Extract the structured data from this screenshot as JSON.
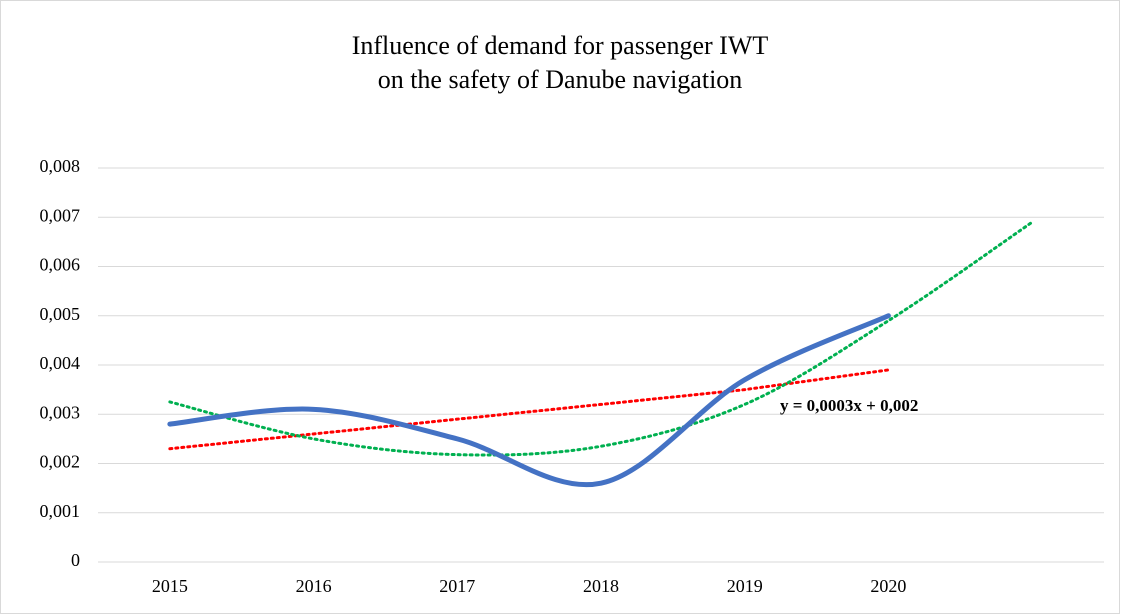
{
  "chart_data": {
    "type": "line",
    "title": [
      "Influence of demand for passenger IWT",
      "on the safety of Danube navigation"
    ],
    "categories": [
      "2015",
      "2016",
      "2017",
      "2018",
      "2019",
      "2020",
      null
    ],
    "series": [
      {
        "color": "#4472c4",
        "style": "solid",
        "smooth": true,
        "values": [
          0.0028,
          0.0031,
          0.0025,
          0.0016,
          0.0037,
          0.005,
          null
        ]
      },
      {
        "color": "#ff0000",
        "style": "dotted",
        "smooth": false,
        "values": [
          0.0023,
          0.0026,
          0.0029,
          0.0032,
          0.0035,
          0.0039,
          null
        ]
      },
      {
        "color": "#00b050",
        "style": "dotted",
        "smooth": true,
        "values": [
          0.00325,
          0.0025,
          0.00218,
          0.00235,
          0.0032,
          0.0049,
          0.0069
        ]
      }
    ],
    "annotation": "y = 0,0003x + 0,002",
    "ylim": [
      0,
      0.008
    ],
    "yticks": [
      0,
      {
        "value": 0.001,
        "label": "0,001"
      },
      {
        "value": 0.002,
        "label": "0,002"
      },
      {
        "value": 0.003,
        "label": "0,003"
      },
      {
        "value": 0.004,
        "label": "0,004"
      },
      {
        "value": 0.005,
        "label": "0,005"
      },
      {
        "value": 0.006,
        "label": "0,006"
      },
      {
        "value": 0.007,
        "label": "0,007"
      },
      {
        "value": 0.008,
        "label": "0,008"
      }
    ],
    "grid": true
  }
}
